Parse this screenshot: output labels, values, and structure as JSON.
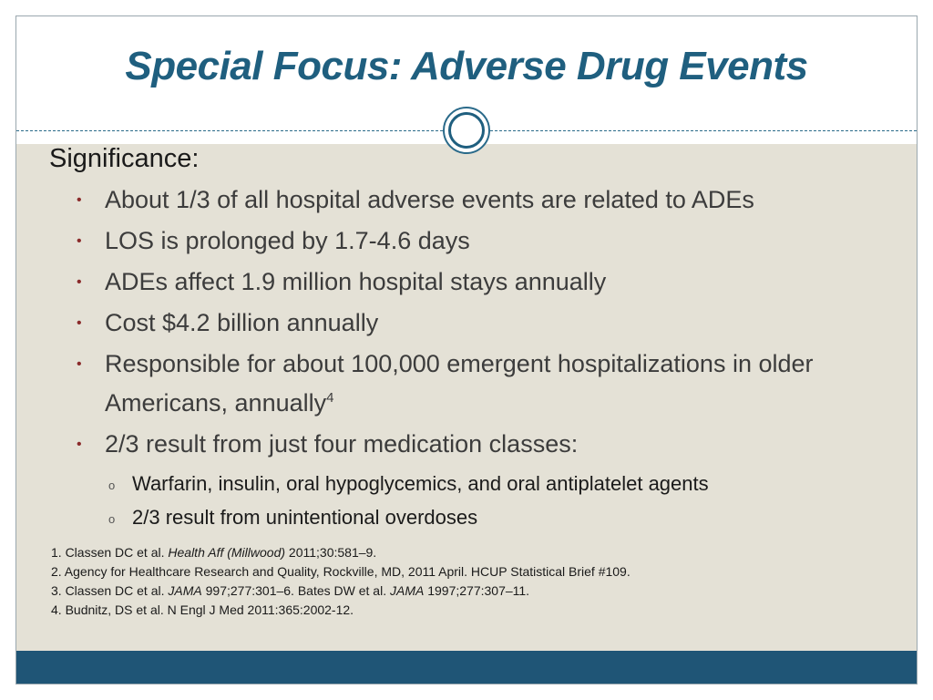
{
  "slide": {
    "title": "Special Focus: Adverse Drug Events",
    "heading": "Significance:",
    "bullets": [
      "About 1/3 of all hospital adverse events are related to ADEs",
      "LOS is prolonged by 1.7-4.6 days",
      "ADEs affect 1.9 million hospital stays annually",
      "Cost $4.2 billion annually",
      "Responsible for about 100,000 emergent hospitalizations in older Americans, annually",
      "2/3 result from just four medication classes:"
    ],
    "bullet5_sup": "4",
    "bullet_marker": "•",
    "sub_marker": "o",
    "sub_bullets": [
      "Warfarin, insulin, oral hypoglycemics, and oral antiplatelet agents",
      "2/3 result from unintentional overdoses"
    ]
  },
  "references": {
    "r1_a": "1. Classen DC et al.  ",
    "r1_b": "Health Aff (Millwood)",
    "r1_c": " 2011;30:581–9.",
    "r2": "2. Agency for Healthcare Research and Quality, Rockville, MD,  2011 April.  HCUP Statistical Brief #109.",
    "r3_a": "3. Classen DC et al.  ",
    "r3_b": "JAMA",
    "r3_c": "  997;277:301–6.    Bates DW et al.  ",
    "r3_d": "JAMA",
    "r3_e": " 1997;277:307–11.",
    "r4": "4. Budnitz, DS et al. N Engl J Med 2011:365:2002-12."
  },
  "colors": {
    "title": "#1f5f7f",
    "content_background": "#e4e1d6",
    "footer_bar": "#1f5576",
    "bullet": "#8a2a2a"
  }
}
